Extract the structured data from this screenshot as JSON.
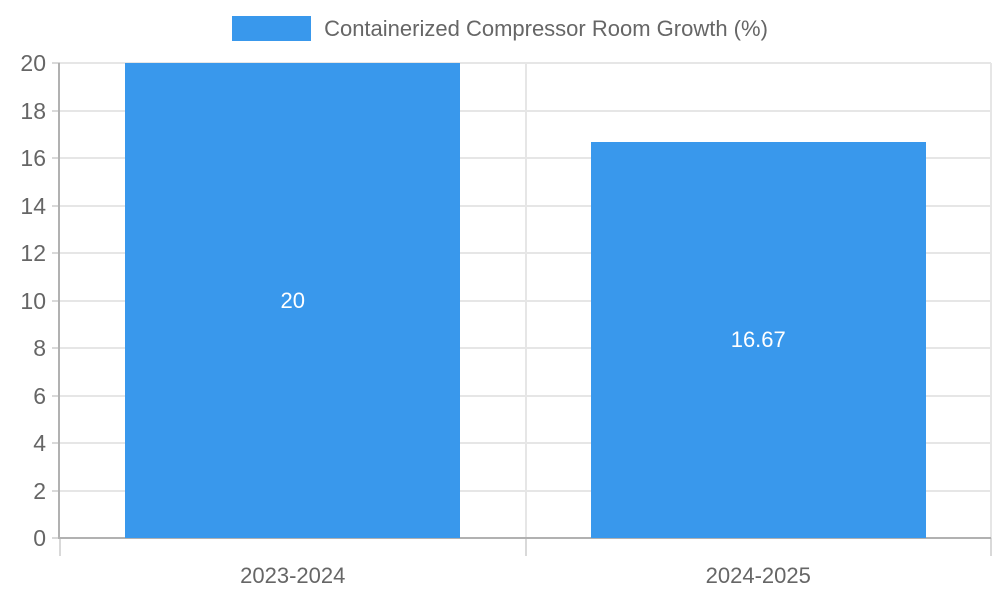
{
  "chart_data": {
    "type": "bar",
    "title": "Containerized Compressor Room Growth (%)",
    "categories": [
      "2023-2024",
      "2024-2025"
    ],
    "series": [
      {
        "name": "Containerized Compressor Room Growth (%)",
        "values": [
          20,
          16.67
        ],
        "value_labels": [
          "20",
          "16.67"
        ]
      }
    ],
    "xlabel": "",
    "ylabel": "",
    "ylim": [
      0,
      20
    ],
    "yticks": [
      0,
      2,
      4,
      6,
      8,
      10,
      12,
      14,
      16,
      18,
      20
    ],
    "grid": true,
    "legend_position": "top",
    "colors": {
      "bar": "#3998EC",
      "bar_value_text": "#ffffff",
      "tick_text": "#666666",
      "legend_text": "#666666",
      "gridline": "#e6e6e6",
      "tick_mark": "#d9d9d9",
      "axis_line": "#b1b1b1"
    }
  }
}
